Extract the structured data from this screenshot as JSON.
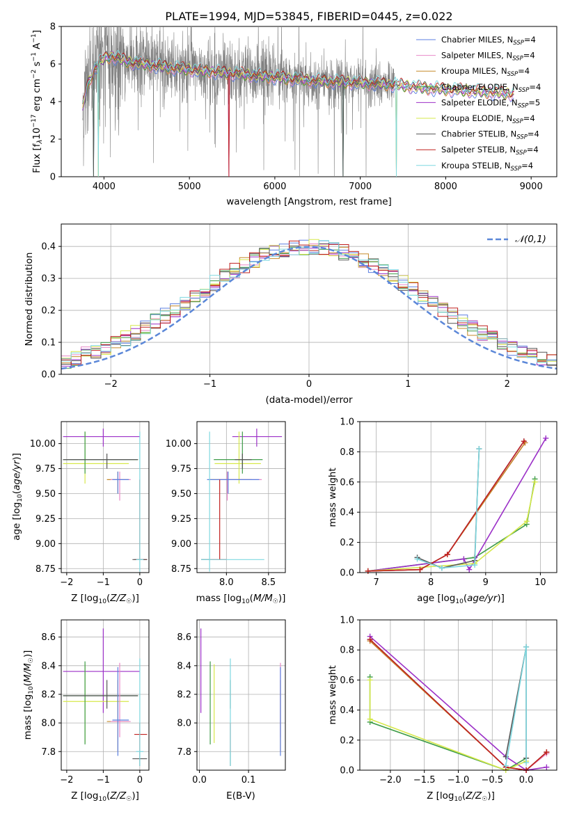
{
  "title": "PLATE=1994, MJD=53845, FIBERID=0445, z=0.022",
  "models": [
    {
      "imf": "Chabrier",
      "lib": "MILES",
      "nssp": "4",
      "color": "#5b7fe0"
    },
    {
      "imf": "Salpeter",
      "lib": "MILES",
      "nssp": "4",
      "color": "#e889c8"
    },
    {
      "imf": "Kroupa",
      "lib": "MILES",
      "nssp": "4",
      "color": "#c58a2a"
    },
    {
      "imf": "Chabrier",
      "lib": "ELODIE",
      "nssp": "4",
      "color": "#3e9c49"
    },
    {
      "imf": "Salpeter",
      "lib": "ELODIE",
      "nssp": "5",
      "color": "#9b2fc7"
    },
    {
      "imf": "Kroupa",
      "lib": "ELODIE",
      "nssp": "4",
      "color": "#d6e84a"
    },
    {
      "imf": "Chabrier",
      "lib": "STELIB",
      "nssp": "4",
      "color": "#555555"
    },
    {
      "imf": "Salpeter",
      "lib": "STELIB",
      "nssp": "4",
      "color": "#c0201f"
    },
    {
      "imf": "Kroupa",
      "lib": "STELIB",
      "nssp": "4",
      "color": "#7fd8e0"
    }
  ],
  "chart_data": [
    {
      "id": "spectrum",
      "type": "line",
      "xlabel": "wavelength [Angstrom, rest frame]",
      "ylabel": "Flux [f_λ 10^-17 erg cm^-2 s^-1 A^-1]",
      "xlim": [
        3500,
        9300
      ],
      "ylim": [
        0,
        8
      ],
      "xticks": [
        4000,
        5000,
        6000,
        7000,
        8000,
        9000
      ],
      "yticks": [
        0,
        2,
        4,
        6,
        8
      ],
      "data_color": "#808080",
      "data_range": [
        3750,
        7400
      ],
      "model_range": [
        3750,
        8800
      ],
      "continuum": {
        "x": [
          3750,
          3800,
          3900,
          4000,
          4100,
          4300,
          4600,
          5000,
          5500,
          6000,
          6500,
          7000,
          7400,
          7800,
          8200,
          8800
        ],
        "y": [
          3.6,
          4.8,
          5.8,
          6.3,
          6.4,
          6.1,
          5.9,
          5.7,
          5.5,
          5.3,
          5.1,
          5.0,
          4.9,
          4.7,
          4.6,
          4.4
        ]
      },
      "model_drops": [
        3880,
        3935,
        5460,
        6800,
        7420
      ],
      "grid": false
    },
    {
      "id": "residual-hist",
      "type": "bar",
      "xlabel": "(data-model)/error",
      "ylabel": "Normed distribution",
      "xlim": [
        -2.5,
        2.5
      ],
      "ylim": [
        0,
        0.47
      ],
      "xticks": [
        -2,
        -1,
        0,
        1,
        2
      ],
      "yticks": [
        0.0,
        0.1,
        0.2,
        0.3,
        0.4
      ],
      "bin_width": 0.1,
      "reference": {
        "name": "𝒩(0,1)",
        "mean": 0,
        "sigma": 1,
        "color": "#5b87d8"
      },
      "grid": true
    },
    {
      "id": "age-vs-Z",
      "type": "scatter",
      "xlabel": "Z [log₁₀(Z/Z☉)]",
      "ylabel": "age  [log₁₀(age/yr)]",
      "xlim": [
        -2.15,
        0.25
      ],
      "ylim": [
        8.71,
        10.22
      ],
      "xticks": [
        -2,
        -1,
        0
      ],
      "yticks": [
        8.75,
        9.0,
        9.25,
        9.5,
        9.75,
        10.0
      ]
    },
    {
      "id": "age-vs-mass",
      "type": "scatter",
      "xlabel": "mass [log₁₀(M/M☉)]",
      "xlim": [
        7.65,
        8.7
      ],
      "ylim": [
        8.71,
        10.22
      ],
      "xticks": [
        8.0,
        8.5
      ],
      "yticks": [
        8.75,
        9.0,
        9.25,
        9.5,
        9.75,
        10.0
      ]
    },
    {
      "id": "weight-vs-age",
      "type": "line",
      "xlabel": "age  [log₁₀(age/yr)]",
      "ylabel": "mass weight",
      "xlim": [
        6.7,
        10.3
      ],
      "ylim": [
        0,
        1
      ],
      "xticks": [
        7,
        8,
        9,
        10
      ],
      "yticks": [
        0.0,
        0.2,
        0.4,
        0.6,
        0.8,
        1.0
      ],
      "series": [
        {
          "model": 0,
          "x": [
            6.85,
            7.8,
            8.3,
            9.7
          ],
          "y": [
            0.01,
            0.02,
            0.12,
            0.87
          ]
        },
        {
          "model": 1,
          "x": [
            6.85,
            7.8,
            8.3,
            9.72
          ],
          "y": [
            0.01,
            0.02,
            0.12,
            0.86
          ]
        },
        {
          "model": 2,
          "x": [
            6.85,
            7.8,
            8.3,
            9.72
          ],
          "y": [
            0.01,
            0.02,
            0.12,
            0.86
          ]
        },
        {
          "model": 3,
          "x": [
            6.85,
            8.8,
            9.75,
            9.9
          ],
          "y": [
            0.01,
            0.1,
            0.32,
            0.62
          ]
        },
        {
          "model": 4,
          "x": [
            6.85,
            8.6,
            8.7,
            10.1
          ],
          "y": [
            0.01,
            0.09,
            0.02,
            0.89
          ]
        },
        {
          "model": 5,
          "x": [
            6.85,
            8.8,
            9.75,
            9.9
          ],
          "y": [
            0.01,
            0.06,
            0.34,
            0.6
          ]
        },
        {
          "model": 6,
          "x": [
            7.75,
            8.2,
            8.8,
            8.88
          ],
          "y": [
            0.1,
            0.03,
            0.08,
            0.82
          ]
        },
        {
          "model": 7,
          "x": [
            6.85,
            7.8,
            8.3,
            9.7
          ],
          "y": [
            0.01,
            0.02,
            0.12,
            0.87
          ]
        },
        {
          "model": 8,
          "x": [
            7.75,
            8.2,
            8.8,
            8.88
          ],
          "y": [
            0.09,
            0.03,
            0.05,
            0.82
          ]
        }
      ],
      "grid": true
    },
    {
      "id": "mass-vs-Z",
      "type": "scatter",
      "xlabel": "Z [log₁₀(Z/Z☉)]",
      "ylabel": "mass [log₁₀(M/M☉)]",
      "xlim": [
        -2.15,
        0.25
      ],
      "ylim": [
        7.67,
        8.72
      ],
      "xticks": [
        -2,
        -1,
        0
      ],
      "yticks": [
        7.8,
        8.0,
        8.2,
        8.4,
        8.6
      ]
    },
    {
      "id": "mass-vs-ebv",
      "type": "scatter",
      "xlabel": "E(B-V)",
      "xlim": [
        -0.005,
        0.175
      ],
      "ylim": [
        7.67,
        8.72
      ],
      "xticks": [
        0.0,
        0.1
      ],
      "yticks": [
        7.8,
        8.0,
        8.2,
        8.4,
        8.6
      ]
    },
    {
      "id": "weight-vs-Z",
      "type": "line",
      "xlabel": "Z [log₁₀(Z/Z☉)]",
      "ylabel": "mass weight",
      "xlim": [
        -2.45,
        0.45
      ],
      "ylim": [
        0,
        1
      ],
      "xticks": [
        -2.0,
        -1.5,
        -1.0,
        -0.5,
        0.0
      ],
      "yticks": [
        0.0,
        0.2,
        0.4,
        0.6,
        0.8,
        1.0
      ],
      "series": [
        {
          "model": 0,
          "x": [
            -2.3,
            -0.3,
            0.0,
            0.3
          ],
          "y": [
            0.87,
            0.02,
            0.0,
            0.12
          ]
        },
        {
          "model": 1,
          "x": [
            -2.3,
            -0.3,
            0.0,
            0.3
          ],
          "y": [
            0.86,
            0.02,
            0.0,
            0.11
          ]
        },
        {
          "model": 2,
          "x": [
            -2.3,
            -0.3,
            0.0,
            0.3
          ],
          "y": [
            0.86,
            0.02,
            0.0,
            0.12
          ]
        },
        {
          "model": 3,
          "x": [
            -2.3,
            -2.3,
            -0.3,
            0.0
          ],
          "y": [
            0.62,
            0.32,
            0.0,
            0.08
          ]
        },
        {
          "model": 4,
          "x": [
            -2.3,
            -0.3,
            0.0,
            0.3
          ],
          "y": [
            0.89,
            0.09,
            0.0,
            0.02
          ]
        },
        {
          "model": 5,
          "x": [
            -2.3,
            -2.3,
            -0.3,
            0.0
          ],
          "y": [
            0.6,
            0.34,
            0.0,
            0.06
          ]
        },
        {
          "model": 6,
          "x": [
            -0.3,
            0.0,
            0.0
          ],
          "y": [
            0.09,
            0.82,
            0.08
          ]
        },
        {
          "model": 7,
          "x": [
            -2.3,
            -0.3,
            0.0,
            0.3
          ],
          "y": [
            0.87,
            0.02,
            0.0,
            0.12
          ]
        },
        {
          "model": 8,
          "x": [
            -0.3,
            0.0,
            0.0
          ],
          "y": [
            0.03,
            0.82,
            0.05
          ]
        }
      ],
      "grid": true
    }
  ],
  "ssp_crosses": [
    {
      "model": 4,
      "age": [
        10.07,
        9.97,
        10.15
      ],
      "Z": [
        -1.0,
        -2.1,
        0.0
      ],
      "mass": [
        8.36,
        8.07,
        8.66
      ],
      "ebv": 0.003
    },
    {
      "model": 5,
      "age": [
        9.8,
        9.6,
        10.12
      ],
      "Z": [
        -1.5,
        -2.1,
        -0.3
      ],
      "mass": [
        8.15,
        7.86,
        8.41
      ],
      "ebv": 0.03
    },
    {
      "model": 3,
      "age": [
        9.84,
        9.7,
        10.12
      ],
      "Z": [
        -1.5,
        -2.1,
        -0.05
      ],
      "mass": [
        8.19,
        7.85,
        8.43
      ],
      "ebv": 0.022
    },
    {
      "model": 6,
      "age": [
        9.84,
        9.75,
        9.9
      ],
      "Z": [
        -0.9,
        -2.1,
        -0.05
      ],
      "mass": [
        8.19,
        8.1,
        8.3
      ],
      "ebv": 0.063
    },
    {
      "model": 2,
      "age": [
        9.64,
        9.5,
        9.72
      ],
      "Z": [
        -0.6,
        -0.9,
        -0.3
      ],
      "mass": [
        8.01,
        7.8,
        8.3
      ],
      "ebv": 0.165
    },
    {
      "model": 1,
      "age": [
        9.64,
        9.43,
        9.72
      ],
      "Z": [
        -0.55,
        -0.8,
        -0.25
      ],
      "mass": [
        8.01,
        7.9,
        8.42
      ],
      "ebv": 0.165
    },
    {
      "model": 0,
      "age": [
        9.64,
        9.5,
        9.72
      ],
      "Z": [
        -0.6,
        -0.75,
        -0.3
      ],
      "mass": [
        8.02,
        7.77,
        8.39
      ],
      "ebv": 0.165
    },
    {
      "model": 7,
      "age": [
        8.84,
        8.84,
        9.64
      ],
      "Z": [
        0.0,
        -0.15,
        0.2
      ],
      "mass": [
        7.92,
        7.8,
        8.0
      ],
      "ebv": 0.063
    },
    {
      "model": 6,
      "age": [
        8.84,
        8.84,
        8.84
      ],
      "Z": [
        0.0,
        -0.2,
        0.2
      ],
      "mass": [
        7.75,
        7.7,
        7.8
      ],
      "ebv": 0.063
    },
    {
      "model": 8,
      "age": [
        8.84,
        8.72,
        10.12
      ],
      "Z": [
        0.0,
        -0.1,
        0.1
      ],
      "mass": [
        7.8,
        7.7,
        8.45
      ],
      "ebv": 0.063
    }
  ]
}
